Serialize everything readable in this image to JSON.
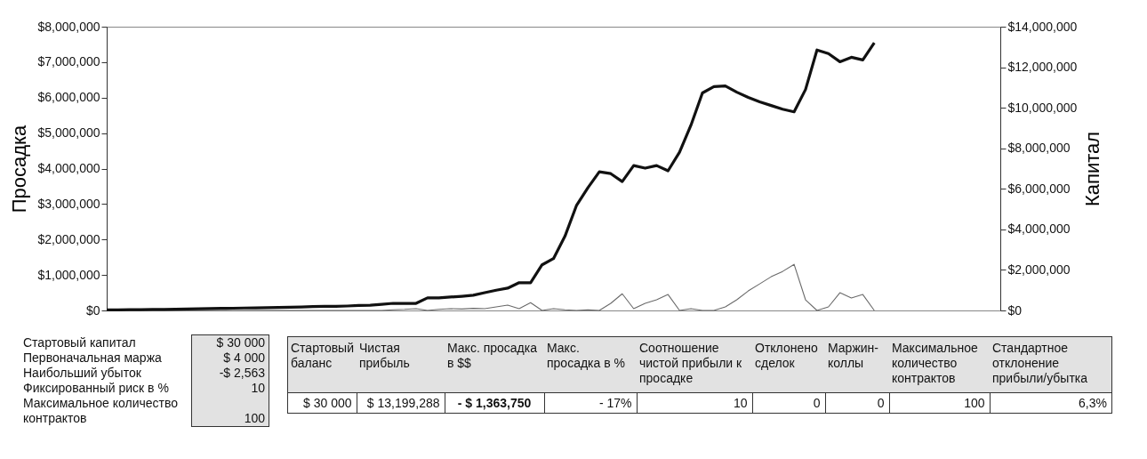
{
  "chart_data": [
    {
      "type": "line",
      "ylabel": "Просадка",
      "y2label": "Капитал",
      "categories": [
        null,
        null,
        null,
        null,
        null,
        null,
        null,
        null,
        null,
        null,
        null,
        null,
        null,
        null,
        null,
        null,
        null,
        null,
        null,
        null,
        null,
        null,
        null,
        null,
        null,
        null,
        null,
        null,
        null,
        null,
        null,
        null,
        null,
        null,
        null,
        null,
        null,
        null,
        null,
        null,
        null,
        null,
        null,
        null,
        null,
        null,
        null,
        null,
        null,
        null,
        null,
        null,
        null,
        null,
        null,
        null,
        null,
        null,
        null,
        null,
        null,
        null,
        null,
        null,
        null,
        null,
        null,
        null,
        null,
        null,
        null,
        null,
        null,
        null,
        null,
        null,
        null,
        null,
        null
      ],
      "series": [
        {
          "type": "line",
          "color": "#6a6a6a",
          "values": [
            0,
            0,
            0,
            0,
            0,
            0,
            0,
            0,
            0,
            0,
            0,
            0,
            0,
            0,
            0,
            0,
            0,
            0,
            0,
            0,
            0,
            0,
            0,
            0,
            0,
            20000,
            30000,
            50000,
            0,
            30000,
            50000,
            40000,
            60000,
            50000,
            100000,
            150000,
            50000,
            220000,
            0,
            50000,
            20000,
            0,
            20000,
            0,
            200000,
            470000,
            50000,
            200000,
            300000,
            450000,
            0,
            50000,
            0,
            0,
            100000,
            300000,
            550000,
            750000,
            950000,
            1100000,
            1300000,
            300000,
            0,
            100000,
            500000,
            350000,
            450000,
            0,
            null,
            null,
            null,
            null,
            null,
            null,
            null,
            null,
            null,
            null,
            null
          ]
        },
        {
          "type": "line",
          "axis": "y2",
          "color": "#111111",
          "values": [
            30000,
            30000,
            40000,
            40000,
            50000,
            50000,
            60000,
            70000,
            80000,
            90000,
            100000,
            110000,
            120000,
            130000,
            140000,
            150000,
            160000,
            170000,
            190000,
            200000,
            200000,
            220000,
            250000,
            260000,
            300000,
            350000,
            350000,
            350000,
            620000,
            620000,
            660000,
            700000,
            750000,
            880000,
            1000000,
            1100000,
            1370000,
            1370000,
            2250000,
            2560000,
            3660000,
            5170000,
            6050000,
            6840000,
            6750000,
            6360000,
            7150000,
            7020000,
            7150000,
            6890000,
            7810000,
            9140000,
            10730000,
            11040000,
            11080000,
            10770000,
            10510000,
            10290000,
            10110000,
            9930000,
            9800000,
            10900000,
            12850000,
            12670000,
            12270000,
            12490000,
            12360000,
            13200000,
            null,
            null,
            null,
            null,
            null,
            null,
            null,
            null,
            null,
            null,
            null
          ]
        }
      ],
      "ylim": [
        0,
        8000000
      ],
      "yticks": [
        {
          "value": 0,
          "label": "$0"
        },
        {
          "value": 1000000,
          "label": "$1,000,000"
        },
        {
          "value": 2000000,
          "label": "$2,000,000"
        },
        {
          "value": 3000000,
          "label": "$3,000,000"
        },
        {
          "value": 4000000,
          "label": "$4,000,000"
        },
        {
          "value": 5000000,
          "label": "$5,000,000"
        },
        {
          "value": 6000000,
          "label": "$6,000,000"
        },
        {
          "value": 7000000,
          "label": "$7,000,000"
        },
        {
          "value": 8000000,
          "label": "$8,000,000"
        }
      ],
      "y2lim": [
        0,
        14000000
      ],
      "y2ticks": [
        {
          "value": 0,
          "label": "$0"
        },
        {
          "value": 2000000,
          "label": "$2,000,000"
        },
        {
          "value": 4000000,
          "label": "$4,000,000"
        },
        {
          "value": 6000000,
          "label": "$6,000,000"
        },
        {
          "value": 8000000,
          "label": "$8,000,000"
        },
        {
          "value": 10000000,
          "label": "$10,000,000"
        },
        {
          "value": 12000000,
          "label": "$12,000,000"
        },
        {
          "value": 14000000,
          "label": "$14,000,000"
        }
      ]
    },
    {
      "type": "other",
      "categories": [
        "Стартовый капитал",
        "Первоначальная маржа",
        "Наибольший убыток",
        "Фиксированный риск в %",
        "Максимальное количество контрактов"
      ],
      "value_labels": [
        "$ 30 000",
        "$ 4 000",
        "-$ 2,563",
        "10",
        "100"
      ]
    },
    {
      "type": "other",
      "categories": [
        "Стартовый баланс",
        "Чистая прибыль",
        "Макс. просадка в $$",
        "Макс. просадка в %",
        "Соотношение чистой прибыли к просадке",
        "Отклонено сделок",
        "Маржин-коллы",
        "Максимальное количество контрактов",
        "Стандартное отклонение прибыли/убытка"
      ],
      "value_labels": [
        "$ 30 000",
        "$ 13,199,288",
        "- $ 1,363,750",
        "- 17%",
        "10",
        "0",
        "0",
        "100",
        "6,3%"
      ]
    }
  ]
}
